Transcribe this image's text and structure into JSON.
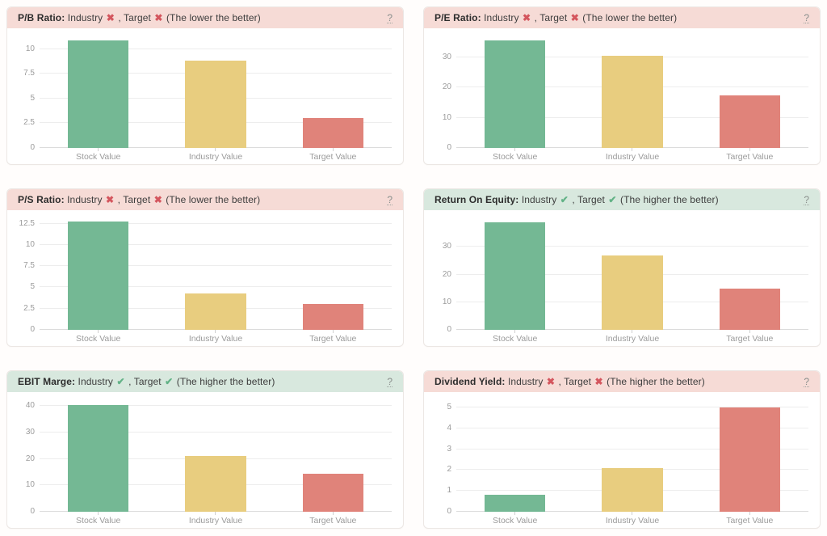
{
  "labels": {
    "industry": "Industry",
    "target": "Target",
    "separator": ",",
    "help": "?"
  },
  "icons": {
    "fail_glyph": "✖",
    "pass_glyph": "✔"
  },
  "colors": {
    "bar_colors": [
      "#74b894",
      "#e8cd7f",
      "#e0837a"
    ],
    "header_bad_bg": "#f6dbd6",
    "header_good_bg": "#d8e8de",
    "fail_icon": "#d4565e",
    "pass_icon": "#62b286",
    "gridline": "#ededed",
    "axis_text": "#9b9b9b"
  },
  "chart_data": [
    {
      "type": "bar",
      "title": "P/B Ratio:",
      "header_tone": "bad",
      "industry_result": "fail",
      "target_result": "fail",
      "note": "(The lower the better)",
      "categories": [
        "Stock Value",
        "Industry Value",
        "Target Value"
      ],
      "values": [
        10.9,
        8.8,
        3.0
      ],
      "yticks": [
        0,
        2.5,
        5,
        7.5,
        10
      ],
      "ymax": 11.6,
      "legend": "none",
      "grid": "horizontal"
    },
    {
      "type": "bar",
      "title": "P/E Ratio:",
      "header_tone": "bad",
      "industry_result": "fail",
      "target_result": "fail",
      "note": "(The lower the better)",
      "categories": [
        "Stock Value",
        "Industry Value",
        "Target Value"
      ],
      "values": [
        35.5,
        30.5,
        17.5
      ],
      "yticks": [
        0,
        10,
        20,
        30
      ],
      "ymax": 38,
      "legend": "none",
      "grid": "horizontal"
    },
    {
      "type": "bar",
      "title": "P/S Ratio:",
      "header_tone": "bad",
      "industry_result": "fail",
      "target_result": "fail",
      "note": "(The lower the better)",
      "categories": [
        "Stock Value",
        "Industry Value",
        "Target Value"
      ],
      "values": [
        12.7,
        4.3,
        3.0
      ],
      "yticks": [
        0,
        2.5,
        5,
        7.5,
        10,
        12.5
      ],
      "ymax": 13.5,
      "legend": "none",
      "grid": "horizontal"
    },
    {
      "type": "bar",
      "title": "Return On Equity:",
      "header_tone": "good",
      "industry_result": "pass",
      "target_result": "pass",
      "note": "(The higher the better)",
      "categories": [
        "Stock Value",
        "Industry Value",
        "Target Value"
      ],
      "values": [
        38.8,
        27,
        15
      ],
      "yticks": [
        0,
        10,
        20,
        30
      ],
      "ymax": 41.5,
      "legend": "none",
      "grid": "horizontal"
    },
    {
      "type": "bar",
      "title": "EBIT Marge:",
      "header_tone": "good",
      "industry_result": "pass",
      "target_result": "pass",
      "note": "(The higher the better)",
      "categories": [
        "Stock Value",
        "Industry Value",
        "Target Value"
      ],
      "values": [
        40.5,
        21,
        14.5
      ],
      "yticks": [
        0,
        10,
        20,
        30,
        40
      ],
      "ymax": 43.5,
      "legend": "none",
      "grid": "horizontal"
    },
    {
      "type": "bar",
      "title": "Dividend Yield:",
      "header_tone": "bad",
      "industry_result": "fail",
      "target_result": "fail",
      "note": "(The higher the better)",
      "categories": [
        "Stock Value",
        "Industry Value",
        "Target Value"
      ],
      "values": [
        0.8,
        2.1,
        5.0
      ],
      "yticks": [
        0,
        1,
        2,
        3,
        4,
        5
      ],
      "ymax": 5.5,
      "legend": "none",
      "grid": "horizontal"
    }
  ]
}
